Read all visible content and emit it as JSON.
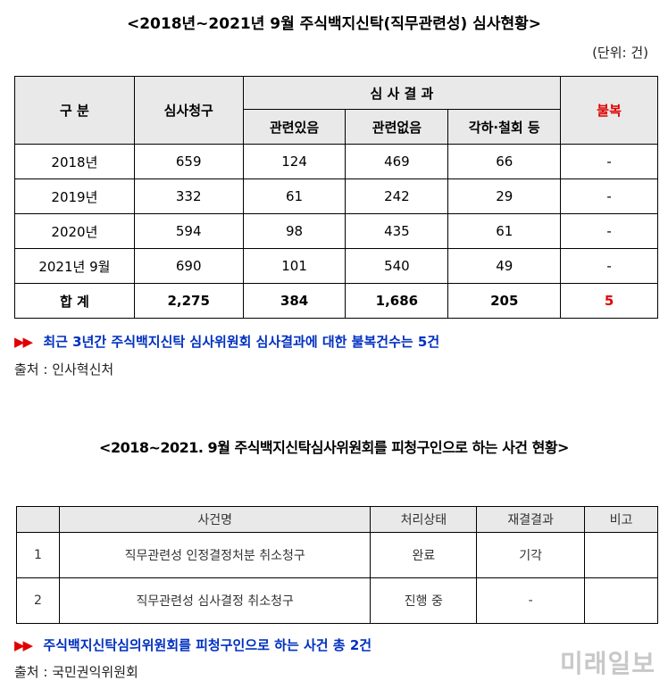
{
  "title1": "<2018년~2021년 9월 주식백지신탁(직무관련성) 심사현황>",
  "unit": "(단위: 건)",
  "table1": {
    "headers": {
      "category": "구  분",
      "requests": "심사청구",
      "result_group": "심  사  결  과",
      "related": "관련있음",
      "unrelated": "관련없음",
      "dismissed": "각하·철회 등",
      "appeal": "불복"
    },
    "rows": [
      {
        "period": "2018년",
        "requests": "659",
        "related": "124",
        "unrelated": "469",
        "dismissed": "66",
        "appeal": "-"
      },
      {
        "period": "2019년",
        "requests": "332",
        "related": "61",
        "unrelated": "242",
        "dismissed": "29",
        "appeal": "-"
      },
      {
        "period": "2020년",
        "requests": "594",
        "related": "98",
        "unrelated": "435",
        "dismissed": "61",
        "appeal": "-"
      },
      {
        "period": "2021년 9월",
        "requests": "690",
        "related": "101",
        "unrelated": "540",
        "dismissed": "49",
        "appeal": "-"
      }
    ],
    "total": {
      "label": "합  계",
      "requests": "2,275",
      "related": "384",
      "unrelated": "1,686",
      "dismissed": "205",
      "appeal": "5"
    }
  },
  "note1": {
    "arrow": "▶▶",
    "text": "최근 3년간 주식백지신탁 심사위원회 심사결과에 대한 불복건수는 5건"
  },
  "source1": "출처 : 인사혁신처",
  "title2": "<2018~2021. 9월 주식백지신탁심사위원회를 피청구인으로 하는 사건 현황>",
  "table2": {
    "headers": {
      "no": "",
      "case": "사건명",
      "status": "처리상태",
      "result": "재결결과",
      "remarks": "비고"
    },
    "rows": [
      {
        "no": "1",
        "case": "직무관련성 인정결정처분 취소청구",
        "status": "완료",
        "result": "기각",
        "remarks": ""
      },
      {
        "no": "2",
        "case": "직무관련성 심사결정 취소청구",
        "status": "진행 중",
        "result": "-",
        "remarks": ""
      }
    ]
  },
  "note2": {
    "arrow": "▶▶",
    "text": "주식백지신탁심의위원회를 피청구인으로 하는 사건 총 2건"
  },
  "source2": "출처 : 국민권익위원회",
  "watermark": "미래일보",
  "colors": {
    "accent_red": "#e00000",
    "note_blue": "#0030c0",
    "header_bg": "#e9e9e9"
  }
}
